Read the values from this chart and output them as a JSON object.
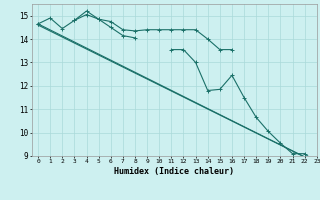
{
  "xlabel": "Humidex (Indice chaleur)",
  "bg_color": "#cdf0f0",
  "line_color": "#1a7068",
  "grid_color": "#aadada",
  "x_values": [
    0,
    1,
    2,
    3,
    4,
    5,
    6,
    7,
    8,
    9,
    10,
    11,
    12,
    13,
    14,
    15,
    16,
    17,
    18,
    19,
    20,
    21,
    22,
    23
  ],
  "line1": [
    14.65,
    14.9,
    14.45,
    14.8,
    15.2,
    14.85,
    14.75,
    14.4,
    14.35,
    14.4,
    14.4,
    14.4,
    14.4,
    14.4,
    14.0,
    13.55,
    13.55,
    null,
    null,
    null,
    null,
    null,
    null,
    null
  ],
  "line2": [
    14.65,
    null,
    null,
    14.8,
    15.05,
    14.85,
    14.5,
    14.15,
    14.05,
    null,
    null,
    13.55,
    13.55,
    13.0,
    11.8,
    11.85,
    12.45,
    11.5,
    10.65,
    10.05,
    9.55,
    9.1,
    9.1,
    8.7
  ],
  "diag1": [
    14.65,
    8.7
  ],
  "diag2": [
    14.6,
    8.7
  ],
  "ylim": [
    9.0,
    15.5
  ],
  "xlim": [
    -0.5,
    23
  ],
  "yticks": [
    9,
    10,
    11,
    12,
    13,
    14,
    15
  ],
  "xticks": [
    0,
    1,
    2,
    3,
    4,
    5,
    6,
    7,
    8,
    9,
    10,
    11,
    12,
    13,
    14,
    15,
    16,
    17,
    18,
    19,
    20,
    21,
    22,
    23
  ]
}
